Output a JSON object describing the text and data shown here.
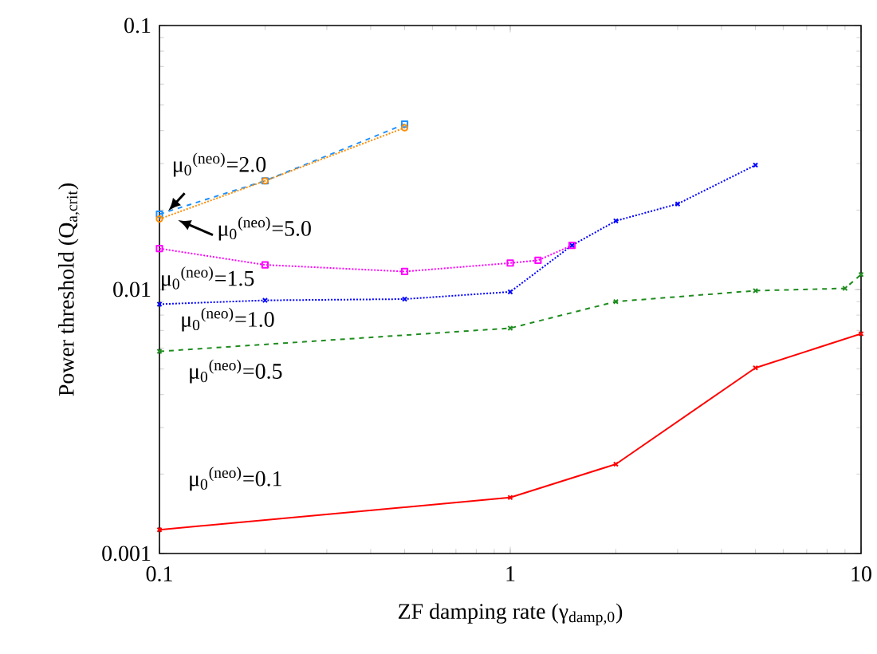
{
  "chart_data": {
    "type": "line",
    "xlabel": "ZF damping rate (γ$_{damp,0}$)",
    "ylabel": "Power threshold (Q$_{a,crit}$)",
    "log": "xy",
    "xlim": [
      0.1,
      10
    ],
    "ylim": [
      0.001,
      0.1
    ],
    "xticks": [
      0.1,
      1,
      10
    ],
    "yticks": [
      0.001,
      0.01,
      0.1
    ],
    "series": [
      {
        "name": "μ$_{0}$$^{(neo)}$=0.1",
        "color": "#ff0000",
        "marker": "cross",
        "line_style": "solid",
        "x": [
          0.1,
          1,
          2,
          5,
          10
        ],
        "values": [
          0.00123,
          0.00163,
          0.00218,
          0.00505,
          0.0068
        ]
      },
      {
        "name": "μ$_{0}$$^{(neo)}$=0.5",
        "color": "#1e8c1e",
        "marker": "cross",
        "line_style": "dashed",
        "x": [
          0.1,
          1,
          2,
          5,
          9,
          10
        ],
        "values": [
          0.00583,
          0.00714,
          0.009,
          0.0099,
          0.0101,
          0.0114
        ]
      },
      {
        "name": "μ$_{0}$$^{(neo)}$=1.0",
        "color": "#0000ff",
        "marker": "cross",
        "line_style": "dotted",
        "x": [
          0.1,
          0.2,
          0.5,
          1,
          1.5,
          2,
          3,
          5
        ],
        "values": [
          0.0088,
          0.0091,
          0.0092,
          0.0098,
          0.0147,
          0.0182,
          0.0211,
          0.0296
        ]
      },
      {
        "name": "μ$_{0}$$^{(neo)}$=1.5",
        "color": "#ff00ff",
        "marker": "square",
        "line_style": "dotted",
        "x": [
          0.1,
          0.2,
          0.5,
          1,
          1.2,
          1.5
        ],
        "values": [
          0.0143,
          0.0124,
          0.0117,
          0.0126,
          0.0129,
          0.0147
        ]
      },
      {
        "name": "μ$_{0}$$^{(neo)}$=2.0",
        "color": "#1e90ff",
        "marker": "square",
        "line_style": "dashed",
        "x": [
          0.1,
          0.2,
          0.5
        ],
        "values": [
          0.0193,
          0.0258,
          0.0423
        ]
      },
      {
        "name": "μ$_{0}$$^{(neo)}$=5.0",
        "color": "#ff8c00",
        "marker": "circle",
        "line_style": "dotted",
        "x": [
          0.1,
          0.2,
          0.5
        ],
        "values": [
          0.0185,
          0.0258,
          0.041
        ]
      }
    ]
  }
}
